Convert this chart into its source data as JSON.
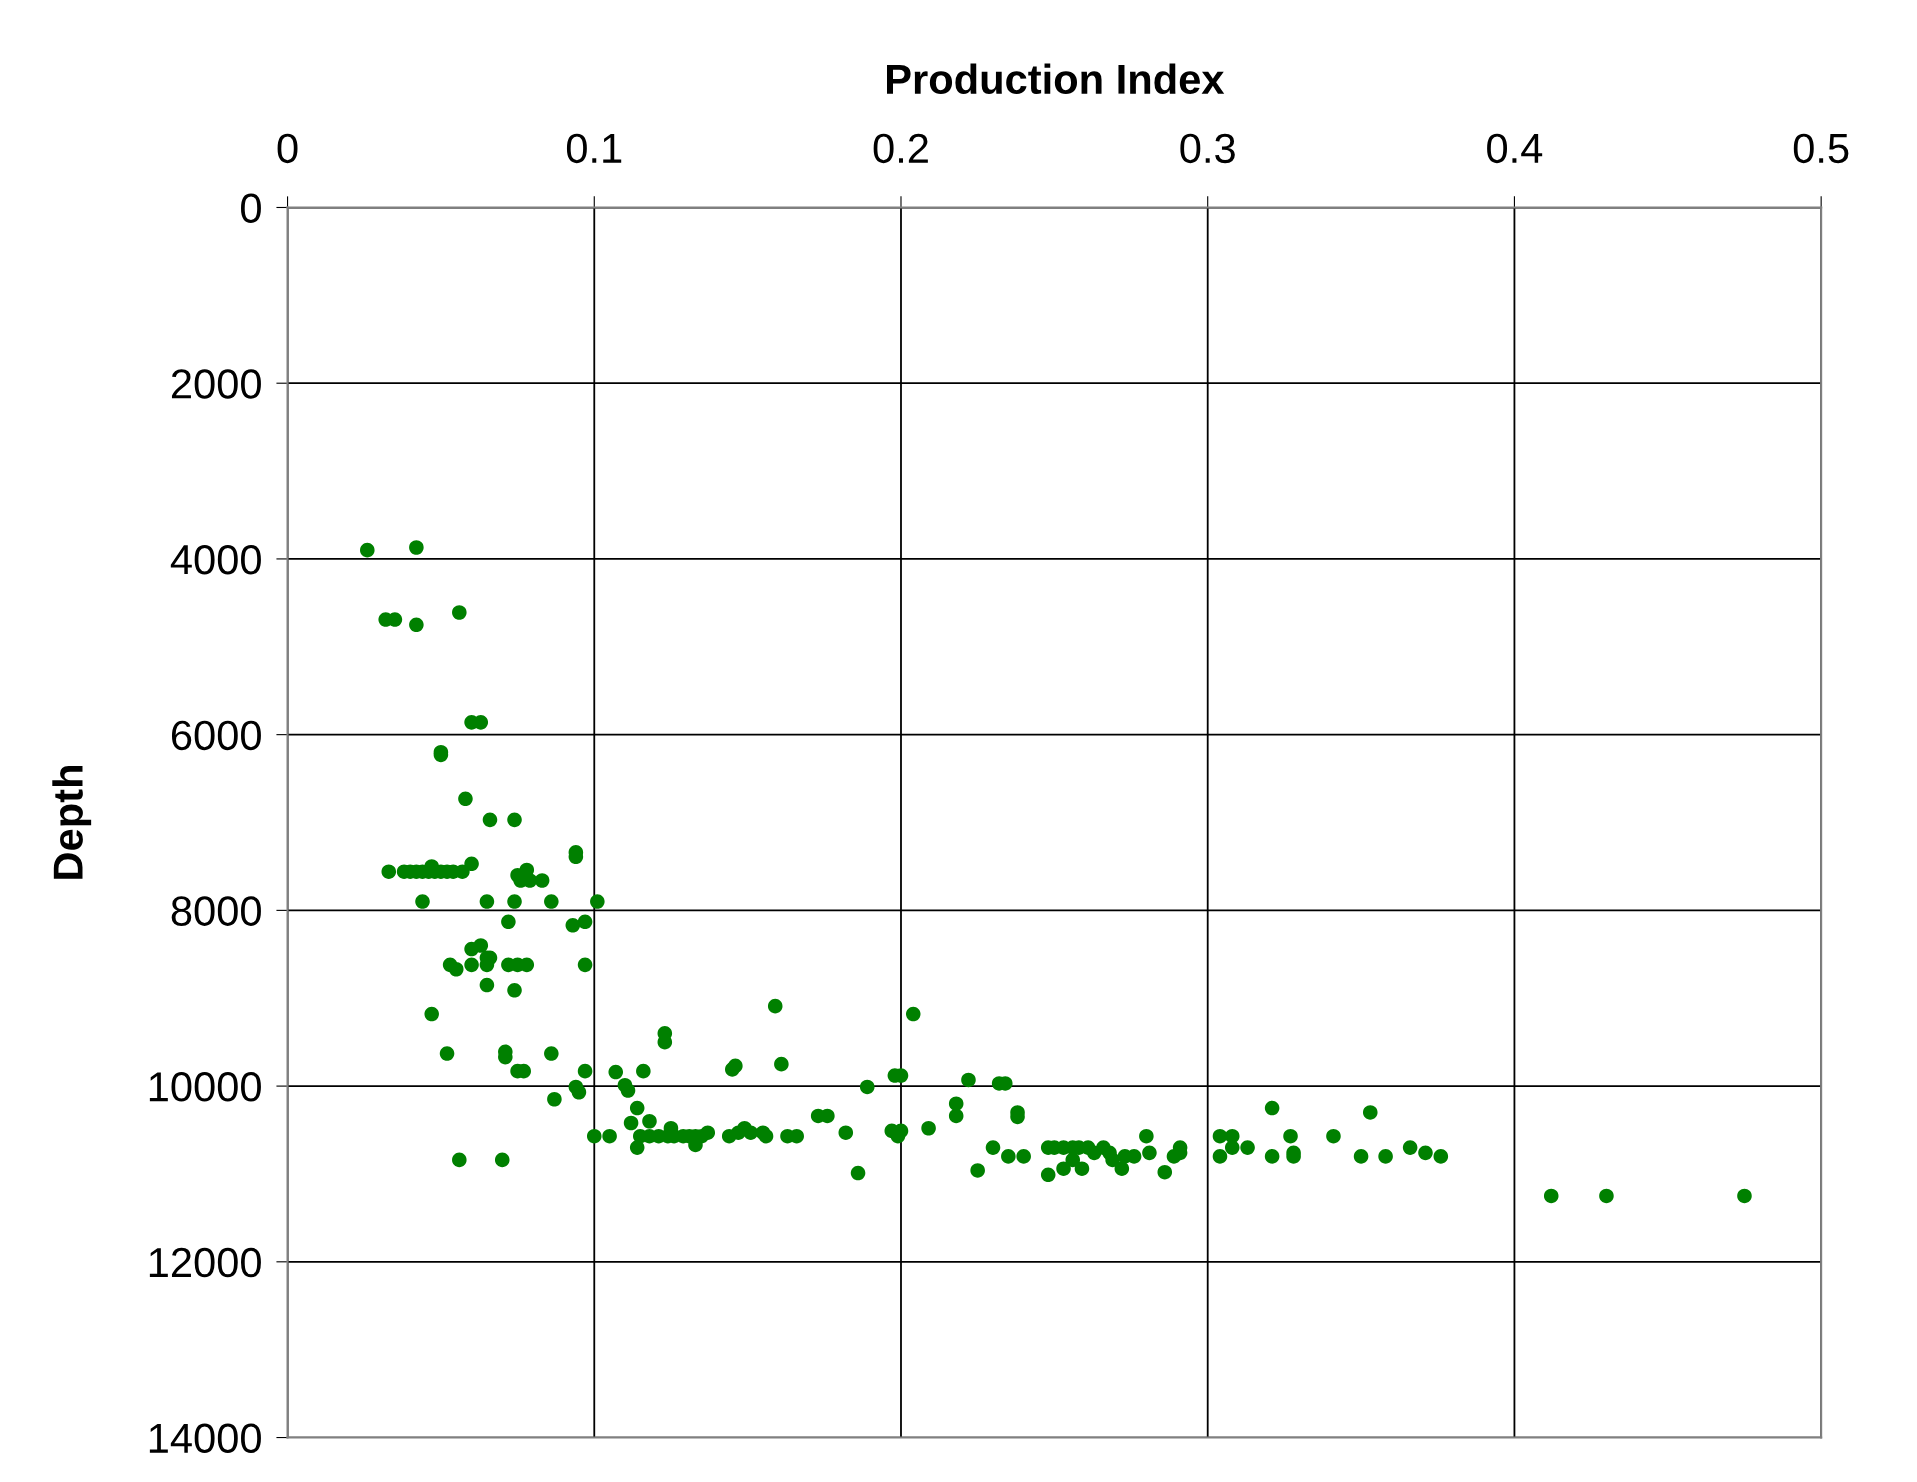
{
  "chart_data": {
    "type": "scatter",
    "xlabel": "Production Index",
    "ylabel": "Depth",
    "xlim": [
      0,
      0.5
    ],
    "xticks": [
      0,
      0.1,
      0.2,
      0.3,
      0.4,
      0.5
    ],
    "ylim": [
      14000,
      0
    ],
    "yticks": [
      0,
      2000,
      4000,
      6000,
      8000,
      10000,
      12000,
      14000
    ],
    "grid": true,
    "marker": "circle",
    "series": [
      {
        "color": "#008000",
        "x": [
          0.026,
          0.042,
          0.032,
          0.035,
          0.042,
          0.056,
          0.06,
          0.063,
          0.05,
          0.05,
          0.058,
          0.066,
          0.074,
          0.094,
          0.094,
          0.033,
          0.038,
          0.04,
          0.042,
          0.044,
          0.046,
          0.048,
          0.05,
          0.052,
          0.054,
          0.057,
          0.06,
          0.047,
          0.075,
          0.078,
          0.076,
          0.079,
          0.083,
          0.044,
          0.065,
          0.074,
          0.086,
          0.101,
          0.072,
          0.093,
          0.097,
          0.06,
          0.063,
          0.065,
          0.066,
          0.053,
          0.055,
          0.06,
          0.065,
          0.072,
          0.075,
          0.078,
          0.097,
          0.065,
          0.074,
          0.047,
          0.052,
          0.071,
          0.071,
          0.075,
          0.077,
          0.086,
          0.087,
          0.094,
          0.095,
          0.097,
          0.056,
          0.07,
          0.1,
          0.105,
          0.107,
          0.11,
          0.111,
          0.114,
          0.112,
          0.114,
          0.116,
          0.118,
          0.115,
          0.118,
          0.121,
          0.124,
          0.126,
          0.129,
          0.131,
          0.133,
          0.135,
          0.133,
          0.123,
          0.123,
          0.125,
          0.137,
          0.144,
          0.147,
          0.149,
          0.151,
          0.145,
          0.146,
          0.155,
          0.156,
          0.159,
          0.161,
          0.163,
          0.166,
          0.173,
          0.176,
          0.182,
          0.186,
          0.189,
          0.197,
          0.199,
          0.2,
          0.198,
          0.2,
          0.204,
          0.209,
          0.218,
          0.218,
          0.222,
          0.225,
          0.23,
          0.232,
          0.234,
          0.235,
          0.24,
          0.238,
          0.238,
          0.248,
          0.248,
          0.25,
          0.253,
          0.256,
          0.258,
          0.261,
          0.253,
          0.256,
          0.259,
          0.263,
          0.266,
          0.268,
          0.269,
          0.272,
          0.273,
          0.276,
          0.28,
          0.281,
          0.286,
          0.289,
          0.291,
          0.291,
          0.304,
          0.308,
          0.304,
          0.308,
          0.313,
          0.321,
          0.321,
          0.327,
          0.328,
          0.328,
          0.341,
          0.35,
          0.353,
          0.358,
          0.366,
          0.371,
          0.376,
          0.412,
          0.43,
          0.475
        ],
        "values": [
          3900,
          3870,
          4690,
          4690,
          4750,
          4610,
          5860,
          5860,
          6200,
          6230,
          6730,
          6970,
          6970,
          7340,
          7390,
          7560,
          7560,
          7560,
          7560,
          7560,
          7560,
          7560,
          7560,
          7560,
          7560,
          7560,
          7470,
          7500,
          7600,
          7540,
          7660,
          7660,
          7660,
          7900,
          7900,
          7900,
          7900,
          7900,
          8130,
          8170,
          8130,
          8440,
          8400,
          8540,
          8540,
          8620,
          8670,
          8620,
          8620,
          8620,
          8620,
          8620,
          8620,
          8850,
          8910,
          9180,
          9630,
          9610,
          9670,
          9830,
          9830,
          9630,
          10150,
          10010,
          10070,
          9830,
          10840,
          10840,
          10570,
          10570,
          9840,
          9990,
          10050,
          10250,
          10420,
          10700,
          9830,
          10400,
          10570,
          10570,
          10570,
          10570,
          10570,
          10570,
          10570,
          10570,
          10570,
          10670,
          9400,
          9500,
          10480,
          10530,
          10570,
          10530,
          10480,
          10530,
          9810,
          9770,
          10530,
          10570,
          9090,
          9750,
          10570,
          10570,
          10340,
          10340,
          10530,
          10990,
          10010,
          10510,
          10570,
          10510,
          9880,
          9880,
          9180,
          10480,
          10200,
          10340,
          9930,
          10960,
          10700,
          9970,
          9970,
          10800,
          10800,
          10300,
          10350,
          10700,
          11010,
          10700,
          10700,
          10700,
          10700,
          10700,
          10940,
          10840,
          10940,
          10760,
          10700,
          10760,
          10840,
          10940,
          10800,
          10800,
          10570,
          10760,
          10980,
          10800,
          10700,
          10760,
          10570,
          10570,
          10800,
          10700,
          10700,
          10250,
          10800,
          10570,
          10760,
          10800,
          10570,
          10800,
          10300,
          10800,
          10700,
          10760,
          10800,
          11250,
          11250,
          11250
        ]
      }
    ]
  }
}
